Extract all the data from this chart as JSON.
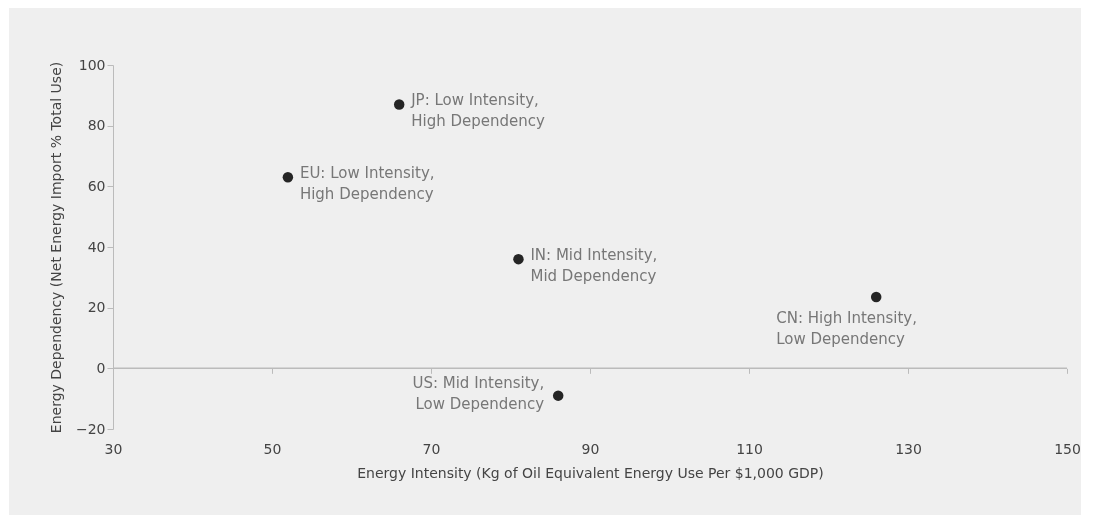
{
  "chart_data": {
    "type": "scatter",
    "xlabel": "Energy Intensity (Kg of Oil Equivalent Energy Use Per $1,000 GDP)",
    "ylabel": "Energy Dependency (Net Energy Import % Total Use)",
    "x": [
      66,
      52,
      81,
      126,
      86
    ],
    "series": [
      {
        "color": "#252525",
        "values": [
          87,
          63,
          36,
          23.5,
          -9
        ]
      }
    ],
    "marker": "circle",
    "grid": false,
    "ref_lines": [
      {
        "axis": "y",
        "value": 0
      }
    ],
    "xlim": [
      30,
      150
    ],
    "xticks": [
      30,
      50,
      70,
      90,
      110,
      130,
      150
    ],
    "ylim": [
      -20,
      100
    ],
    "yticks": [
      -20,
      0,
      20,
      40,
      60,
      80,
      100
    ],
    "annotations": [
      {
        "text": "JP: Low Intensity, High Dependency",
        "x": 66,
        "y": 87
      },
      {
        "text": "EU: Low Intensity, High Dependency",
        "x": 52,
        "y": 63
      },
      {
        "text": "IN: Mid Intensity, Mid Dependency",
        "x": 81,
        "y": 36
      },
      {
        "text": "CN: High Intensity, Low Dependency",
        "x": 126,
        "y": 23.5
      },
      {
        "text": "US: Mid Intensity, Low Dependency",
        "x": 86,
        "y": -9
      }
    ]
  }
}
